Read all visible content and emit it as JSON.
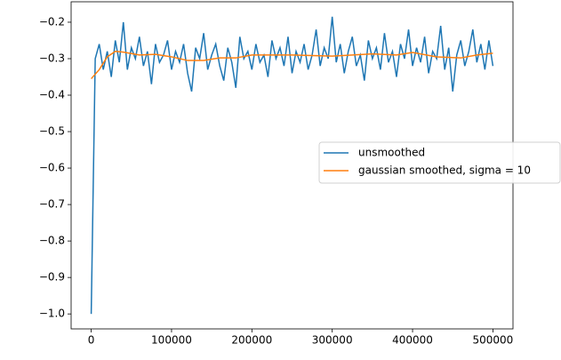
{
  "chart_data": {
    "type": "line",
    "xlim": [
      -25000,
      525000
    ],
    "ylim": [
      -1.041,
      -0.144
    ],
    "xticks": [
      0,
      100000,
      200000,
      300000,
      400000,
      500000
    ],
    "yticks": [
      {
        "value": -1.0,
        "label": "−1.0"
      },
      {
        "value": -0.9,
        "label": "−0.9"
      },
      {
        "value": -0.8,
        "label": "−0.8"
      },
      {
        "value": -0.7,
        "label": "−0.7"
      },
      {
        "value": -0.6,
        "label": "−0.6"
      },
      {
        "value": -0.5,
        "label": "−0.5"
      },
      {
        "value": -0.4,
        "label": "−0.4"
      },
      {
        "value": -0.3,
        "label": "−0.3"
      },
      {
        "value": -0.2,
        "label": "−0.2"
      }
    ],
    "legend": "center right",
    "series": [
      {
        "name": "unsmoothed",
        "color": "#1f77b4",
        "x": [
          0,
          5000,
          10000,
          15000,
          20000,
          25000,
          30000,
          35000,
          40000,
          45000,
          50000,
          55000,
          60000,
          65000,
          70000,
          75000,
          80000,
          85000,
          90000,
          95000,
          100000,
          105000,
          110000,
          115000,
          120000,
          125000,
          130000,
          135000,
          140000,
          145000,
          150000,
          155000,
          160000,
          165000,
          170000,
          175000,
          180000,
          185000,
          190000,
          195000,
          200000,
          205000,
          210000,
          215000,
          220000,
          225000,
          230000,
          235000,
          240000,
          245000,
          250000,
          255000,
          260000,
          265000,
          270000,
          275000,
          280000,
          285000,
          290000,
          295000,
          300000,
          305000,
          310000,
          315000,
          320000,
          325000,
          330000,
          335000,
          340000,
          345000,
          350000,
          355000,
          360000,
          365000,
          370000,
          375000,
          380000,
          385000,
          390000,
          395000,
          400000,
          405000,
          410000,
          415000,
          420000,
          425000,
          430000,
          435000,
          440000,
          445000,
          450000,
          455000,
          460000,
          465000,
          470000,
          475000,
          480000,
          485000,
          490000,
          495000,
          500000
        ],
        "values": [
          -1.0,
          -0.3,
          -0.26,
          -0.33,
          -0.28,
          -0.35,
          -0.25,
          -0.31,
          -0.2,
          -0.33,
          -0.27,
          -0.3,
          -0.24,
          -0.32,
          -0.28,
          -0.37,
          -0.26,
          -0.31,
          -0.29,
          -0.25,
          -0.33,
          -0.28,
          -0.31,
          -0.26,
          -0.34,
          -0.39,
          -0.27,
          -0.3,
          -0.23,
          -0.33,
          -0.29,
          -0.26,
          -0.32,
          -0.36,
          -0.27,
          -0.31,
          -0.38,
          -0.24,
          -0.3,
          -0.28,
          -0.33,
          -0.26,
          -0.31,
          -0.29,
          -0.35,
          -0.25,
          -0.3,
          -0.27,
          -0.32,
          -0.24,
          -0.34,
          -0.28,
          -0.31,
          -0.26,
          -0.33,
          -0.29,
          -0.22,
          -0.32,
          -0.27,
          -0.3,
          -0.185,
          -0.31,
          -0.26,
          -0.34,
          -0.28,
          -0.24,
          -0.32,
          -0.29,
          -0.36,
          -0.25,
          -0.3,
          -0.27,
          -0.33,
          -0.23,
          -0.31,
          -0.28,
          -0.35,
          -0.26,
          -0.3,
          -0.22,
          -0.32,
          -0.27,
          -0.31,
          -0.24,
          -0.34,
          -0.28,
          -0.3,
          -0.21,
          -0.33,
          -0.27,
          -0.39,
          -0.29,
          -0.25,
          -0.32,
          -0.28,
          -0.22,
          -0.31,
          -0.26,
          -0.33,
          -0.25,
          -0.32
        ]
      },
      {
        "name": "gaussian smoothed, sigma = 10",
        "color": "#ff7f0e",
        "x": [
          0,
          10000,
          20000,
          30000,
          40000,
          60000,
          80000,
          100000,
          120000,
          140000,
          160000,
          180000,
          200000,
          250000,
          300000,
          350000,
          380000,
          400000,
          430000,
          460000,
          480000,
          500000
        ],
        "values": [
          -0.355,
          -0.33,
          -0.295,
          -0.28,
          -0.282,
          -0.29,
          -0.288,
          -0.295,
          -0.305,
          -0.305,
          -0.298,
          -0.298,
          -0.29,
          -0.29,
          -0.293,
          -0.287,
          -0.29,
          -0.283,
          -0.295,
          -0.298,
          -0.29,
          -0.285
        ]
      }
    ]
  }
}
